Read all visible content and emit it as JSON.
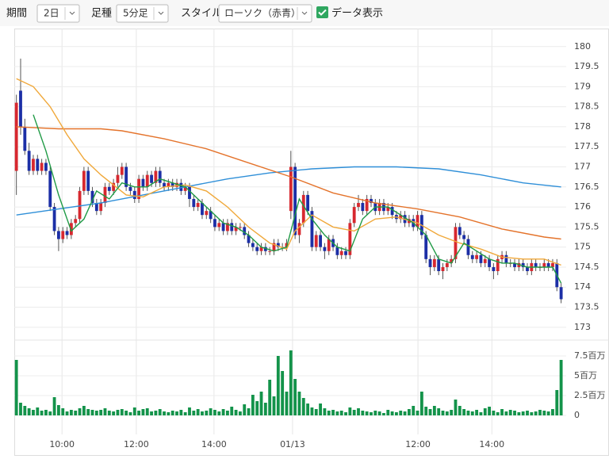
{
  "toolbar": {
    "period_label": "期間",
    "period": "2日",
    "interval_label": "足種",
    "interval": "5分足",
    "style_label": "スタイル",
    "style": "ローソク（赤青）",
    "data_toggle": "データ表示"
  },
  "chart_data": {
    "type": "candlestick",
    "up_color": "#d7282f",
    "down_color": "#1c2fa6",
    "volume_color": "#13934a",
    "grid": true,
    "xlim": [
      -0.5,
      130.2
    ],
    "xticks": [
      {
        "value": 10.8,
        "label": "10:00"
      },
      {
        "value": 28.4,
        "label": "12:00"
      },
      {
        "value": 46.8,
        "label": "14:00"
      },
      {
        "value": 65.4,
        "label": "01/13"
      },
      {
        "value": 95.1,
        "label": "12:00"
      },
      {
        "value": 112.6,
        "label": "14:00"
      }
    ],
    "ylim": [
      172.7,
      180.45
    ],
    "yticks": [
      173,
      173.5,
      174,
      174.5,
      175,
      175.5,
      176,
      176.5,
      177,
      177.5,
      178,
      178.5,
      179,
      179.5,
      180
    ],
    "volume_ylim": [
      -2.4,
      9.4
    ],
    "volume_yticks": [
      0,
      {
        "value": 2.5,
        "label": "2.5百万"
      },
      {
        "value": 5,
        "label": "5百万"
      },
      {
        "value": 7.5,
        "label": "7.5百万"
      }
    ],
    "ohlc": [
      [
        176.9,
        178.8,
        176.3,
        178.6
      ],
      [
        178.9,
        179.7,
        177.8,
        178.0
      ],
      [
        178.0,
        178.2,
        177.3,
        177.4
      ],
      [
        177.4,
        177.6,
        176.8,
        176.9
      ],
      [
        176.9,
        177.3,
        176.8,
        177.2
      ],
      [
        177.2,
        177.3,
        176.8,
        176.9
      ],
      [
        176.9,
        177.2,
        176.8,
        177.1
      ],
      [
        177.1,
        177.2,
        176.8,
        176.9
      ],
      [
        176.9,
        177.0,
        175.9,
        176.0
      ],
      [
        176.0,
        176.1,
        175.3,
        175.4
      ],
      [
        175.4,
        175.5,
        174.9,
        175.2
      ],
      [
        175.2,
        175.5,
        175.1,
        175.4
      ],
      [
        175.4,
        175.5,
        175.2,
        175.3
      ],
      [
        175.3,
        175.7,
        175.2,
        175.6
      ],
      [
        175.6,
        175.8,
        175.5,
        175.7
      ],
      [
        175.7,
        176.5,
        175.6,
        176.4
      ],
      [
        176.4,
        177.0,
        176.3,
        176.9
      ],
      [
        176.9,
        177.0,
        176.3,
        176.4
      ],
      [
        176.4,
        176.5,
        176.0,
        176.1
      ],
      [
        176.1,
        176.2,
        175.8,
        175.9
      ],
      [
        175.9,
        176.2,
        175.8,
        176.1
      ],
      [
        176.1,
        176.6,
        176.0,
        176.5
      ],
      [
        176.5,
        176.6,
        176.3,
        176.4
      ],
      [
        176.4,
        176.7,
        176.3,
        176.6
      ],
      [
        176.6,
        177.0,
        176.5,
        176.8
      ],
      [
        176.8,
        177.1,
        176.7,
        177.0
      ],
      [
        177.0,
        177.1,
        176.4,
        176.5
      ],
      [
        176.5,
        176.6,
        176.3,
        176.4
      ],
      [
        176.4,
        176.5,
        176.1,
        176.2
      ],
      [
        176.2,
        176.8,
        176.1,
        176.7
      ],
      [
        176.7,
        176.8,
        176.4,
        176.5
      ],
      [
        176.5,
        176.9,
        176.4,
        176.8
      ],
      [
        176.8,
        176.9,
        176.5,
        176.6
      ],
      [
        176.6,
        177.0,
        176.5,
        176.9
      ],
      [
        176.9,
        177.0,
        176.5,
        176.6
      ],
      [
        176.6,
        176.7,
        176.4,
        176.5
      ],
      [
        176.5,
        176.7,
        176.4,
        176.6
      ],
      [
        176.6,
        176.7,
        176.4,
        176.5
      ],
      [
        176.5,
        176.7,
        176.4,
        176.6
      ],
      [
        176.6,
        176.7,
        176.3,
        176.4
      ],
      [
        176.4,
        176.6,
        176.3,
        176.5
      ],
      [
        176.5,
        176.6,
        176.0,
        176.2
      ],
      [
        176.2,
        176.3,
        175.9,
        176.0
      ],
      [
        176.0,
        176.2,
        175.9,
        176.1
      ],
      [
        176.1,
        176.2,
        175.7,
        175.8
      ],
      [
        175.8,
        176.0,
        175.7,
        175.9
      ],
      [
        175.9,
        176.0,
        175.6,
        175.7
      ],
      [
        175.7,
        175.8,
        175.4,
        175.5
      ],
      [
        175.5,
        175.7,
        175.4,
        175.6
      ],
      [
        175.6,
        175.7,
        175.3,
        175.4
      ],
      [
        175.4,
        175.7,
        175.3,
        175.6
      ],
      [
        175.6,
        175.7,
        175.3,
        175.4
      ],
      [
        175.4,
        175.6,
        175.3,
        175.5
      ],
      [
        175.5,
        175.6,
        175.4,
        175.5
      ],
      [
        175.5,
        175.6,
        175.2,
        175.3
      ],
      [
        175.3,
        175.4,
        175.0,
        175.1
      ],
      [
        175.1,
        175.2,
        174.9,
        175.0
      ],
      [
        175.0,
        175.1,
        174.8,
        174.9
      ],
      [
        174.9,
        175.1,
        174.8,
        175.0
      ],
      [
        175.0,
        175.1,
        174.8,
        174.9
      ],
      [
        174.9,
        175.0,
        174.8,
        174.9
      ],
      [
        174.9,
        175.2,
        174.8,
        175.1
      ],
      [
        175.1,
        175.2,
        174.9,
        175.0
      ],
      [
        175.0,
        175.1,
        174.9,
        175.0
      ],
      [
        175.0,
        175.2,
        174.9,
        175.1
      ],
      [
        175.9,
        177.4,
        175.7,
        177.0
      ],
      [
        177.0,
        177.1,
        175.2,
        175.3
      ],
      [
        175.3,
        175.7,
        175.1,
        175.6
      ],
      [
        175.6,
        176.4,
        175.5,
        176.3
      ],
      [
        176.3,
        176.4,
        175.8,
        175.9
      ],
      [
        175.9,
        176.0,
        174.9,
        175.0
      ],
      [
        175.0,
        175.4,
        174.9,
        175.3
      ],
      [
        175.3,
        175.4,
        174.9,
        175.0
      ],
      [
        175.0,
        175.1,
        174.7,
        174.9
      ],
      [
        174.9,
        175.3,
        174.8,
        175.2
      ],
      [
        175.2,
        175.3,
        174.9,
        175.0
      ],
      [
        175.0,
        175.1,
        174.7,
        174.8
      ],
      [
        174.8,
        175.0,
        174.7,
        174.9
      ],
      [
        174.9,
        175.0,
        174.7,
        174.8
      ],
      [
        174.8,
        175.7,
        174.7,
        175.6
      ],
      [
        175.6,
        176.1,
        175.5,
        176.0
      ],
      [
        176.0,
        176.3,
        175.9,
        176.1
      ],
      [
        176.1,
        176.2,
        175.8,
        175.9
      ],
      [
        175.9,
        176.3,
        175.8,
        176.2
      ],
      [
        176.2,
        176.3,
        176.0,
        176.1
      ],
      [
        176.1,
        176.2,
        175.8,
        175.9
      ],
      [
        175.9,
        176.2,
        175.8,
        176.1
      ],
      [
        176.1,
        176.2,
        175.8,
        175.9
      ],
      [
        175.9,
        176.1,
        175.8,
        176.0
      ],
      [
        176.0,
        176.1,
        175.7,
        175.8
      ],
      [
        175.8,
        175.9,
        175.6,
        175.7
      ],
      [
        175.7,
        175.9,
        175.6,
        175.8
      ],
      [
        175.8,
        175.9,
        175.5,
        175.6
      ],
      [
        175.6,
        175.8,
        175.5,
        175.7
      ],
      [
        175.7,
        175.8,
        175.4,
        175.5
      ],
      [
        175.5,
        175.9,
        175.4,
        175.8
      ],
      [
        175.8,
        175.9,
        175.2,
        175.3
      ],
      [
        175.3,
        175.4,
        174.6,
        174.7
      ],
      [
        174.7,
        174.8,
        174.3,
        174.5
      ],
      [
        174.5,
        174.8,
        174.4,
        174.7
      ],
      [
        174.7,
        174.8,
        174.3,
        174.4
      ],
      [
        174.4,
        174.6,
        174.2,
        174.5
      ],
      [
        174.5,
        174.7,
        174.4,
        174.6
      ],
      [
        174.6,
        174.8,
        174.5,
        174.7
      ],
      [
        174.7,
        175.6,
        174.6,
        175.5
      ],
      [
        175.5,
        175.6,
        175.2,
        175.3
      ],
      [
        175.3,
        175.4,
        175.1,
        175.2
      ],
      [
        175.2,
        175.3,
        174.7,
        174.8
      ],
      [
        174.8,
        174.9,
        174.6,
        174.7
      ],
      [
        174.7,
        174.9,
        174.6,
        174.8
      ],
      [
        174.8,
        174.9,
        174.5,
        174.6
      ],
      [
        174.6,
        174.8,
        174.5,
        174.7
      ],
      [
        174.7,
        174.8,
        174.4,
        174.5
      ],
      [
        174.5,
        174.6,
        174.2,
        174.4
      ],
      [
        174.4,
        174.8,
        174.3,
        174.7
      ],
      [
        174.7,
        174.9,
        174.6,
        174.8
      ],
      [
        174.8,
        174.9,
        174.5,
        174.6
      ],
      [
        174.6,
        174.7,
        174.5,
        174.6
      ],
      [
        174.6,
        174.7,
        174.4,
        174.5
      ],
      [
        174.5,
        174.7,
        174.4,
        174.6
      ],
      [
        174.6,
        174.7,
        174.4,
        174.5
      ],
      [
        174.5,
        174.6,
        174.3,
        174.4
      ],
      [
        174.4,
        174.7,
        174.3,
        174.6
      ],
      [
        174.6,
        174.7,
        174.4,
        174.5
      ],
      [
        174.5,
        174.6,
        174.4,
        174.5
      ],
      [
        174.5,
        174.7,
        174.4,
        174.6
      ],
      [
        174.6,
        174.7,
        174.4,
        174.5
      ],
      [
        174.5,
        174.7,
        174.4,
        174.6
      ],
      [
        174.6,
        174.7,
        173.9,
        174.0
      ],
      [
        174.0,
        174.1,
        173.6,
        173.7
      ]
    ],
    "volume": [
      7.0,
      1.6,
      1.2,
      0.9,
      0.7,
      1.0,
      0.6,
      0.7,
      0.5,
      2.3,
      1.3,
      0.9,
      0.5,
      0.7,
      0.6,
      0.9,
      1.2,
      0.8,
      0.7,
      0.6,
      0.7,
      0.9,
      0.6,
      0.5,
      0.7,
      0.8,
      0.6,
      0.4,
      1.0,
      0.6,
      0.8,
      0.9,
      0.5,
      0.6,
      0.8,
      0.5,
      0.4,
      0.6,
      0.5,
      0.7,
      0.4,
      1.0,
      0.6,
      0.8,
      0.5,
      0.6,
      0.9,
      0.7,
      0.5,
      0.8,
      0.6,
      1.1,
      0.7,
      0.5,
      1.4,
      0.9,
      2.6,
      1.8,
      3.0,
      1.6,
      4.5,
      2.4,
      7.5,
      5.6,
      3.0,
      8.2,
      4.6,
      3.0,
      2.2,
      1.5,
      1.0,
      0.8,
      1.5,
      0.9,
      0.6,
      0.7,
      0.5,
      0.6,
      0.4,
      1.0,
      0.7,
      0.9,
      0.6,
      0.5,
      0.4,
      0.6,
      0.5,
      0.3,
      0.7,
      0.5,
      0.4,
      0.6,
      0.5,
      0.8,
      1.2,
      0.6,
      3.0,
      1.1,
      0.8,
      1.2,
      0.9,
      0.6,
      0.5,
      0.7,
      2.0,
      1.2,
      0.8,
      0.6,
      0.5,
      0.7,
      0.4,
      0.9,
      1.1,
      0.6,
      0.4,
      0.8,
      0.5,
      0.7,
      0.6,
      0.4,
      0.5,
      0.6,
      0.4,
      0.5,
      0.7,
      0.6,
      0.5,
      0.8,
      3.2,
      7.0
    ],
    "ma": [
      {
        "color": "#2f8fd8",
        "x": [
          0,
          10,
          20,
          30,
          40,
          50,
          60,
          70,
          80,
          90,
          100,
          110,
          120,
          129
        ],
        "values": [
          175.8,
          175.95,
          176.1,
          176.3,
          176.5,
          176.7,
          176.85,
          176.95,
          177.0,
          177.0,
          176.95,
          176.8,
          176.6,
          176.5
        ]
      },
      {
        "color": "#e4732b",
        "x": [
          0,
          10,
          20,
          25,
          35,
          45,
          55,
          65,
          75,
          85,
          95,
          105,
          115,
          125,
          129
        ],
        "values": [
          178.0,
          177.95,
          177.95,
          177.9,
          177.7,
          177.45,
          177.1,
          176.75,
          176.35,
          176.1,
          175.95,
          175.75,
          175.45,
          175.25,
          175.2
        ]
      },
      {
        "color": "#f0a83a",
        "x": [
          0,
          4,
          8,
          12,
          16,
          20,
          26,
          30,
          35,
          40,
          45,
          50,
          55,
          60,
          64,
          66,
          70,
          75,
          80,
          85,
          90,
          95,
          100,
          105,
          110,
          115,
          120,
          125,
          129
        ],
        "values": [
          179.2,
          179.0,
          178.5,
          177.8,
          177.2,
          176.8,
          176.3,
          176.25,
          176.5,
          176.55,
          176.4,
          176.0,
          175.5,
          175.1,
          174.95,
          175.4,
          175.8,
          175.5,
          175.4,
          175.7,
          175.75,
          175.6,
          175.3,
          175.1,
          174.95,
          174.75,
          174.7,
          174.7,
          174.55
        ]
      },
      {
        "color": "#1f9a45",
        "x": [
          4,
          7,
          10,
          13,
          16,
          19,
          22,
          25,
          28,
          31,
          34,
          37,
          40,
          43,
          46,
          49,
          52,
          55,
          58,
          61,
          64,
          67,
          70,
          73,
          76,
          79,
          82,
          85,
          88,
          91,
          94,
          97,
          100,
          103,
          106,
          109,
          112,
          115,
          118,
          121,
          124,
          127,
          129
        ],
        "values": [
          178.3,
          177.4,
          176.3,
          175.4,
          175.7,
          176.4,
          176.2,
          176.6,
          176.5,
          176.5,
          176.7,
          176.6,
          176.5,
          176.2,
          175.9,
          175.6,
          175.5,
          175.3,
          175.0,
          174.9,
          175.0,
          176.2,
          175.7,
          175.3,
          175.0,
          174.9,
          175.7,
          176.0,
          176.0,
          175.8,
          175.6,
          175.3,
          174.7,
          174.6,
          175.1,
          174.9,
          174.7,
          174.6,
          174.6,
          174.5,
          174.5,
          174.5,
          174.1
        ]
      }
    ]
  }
}
